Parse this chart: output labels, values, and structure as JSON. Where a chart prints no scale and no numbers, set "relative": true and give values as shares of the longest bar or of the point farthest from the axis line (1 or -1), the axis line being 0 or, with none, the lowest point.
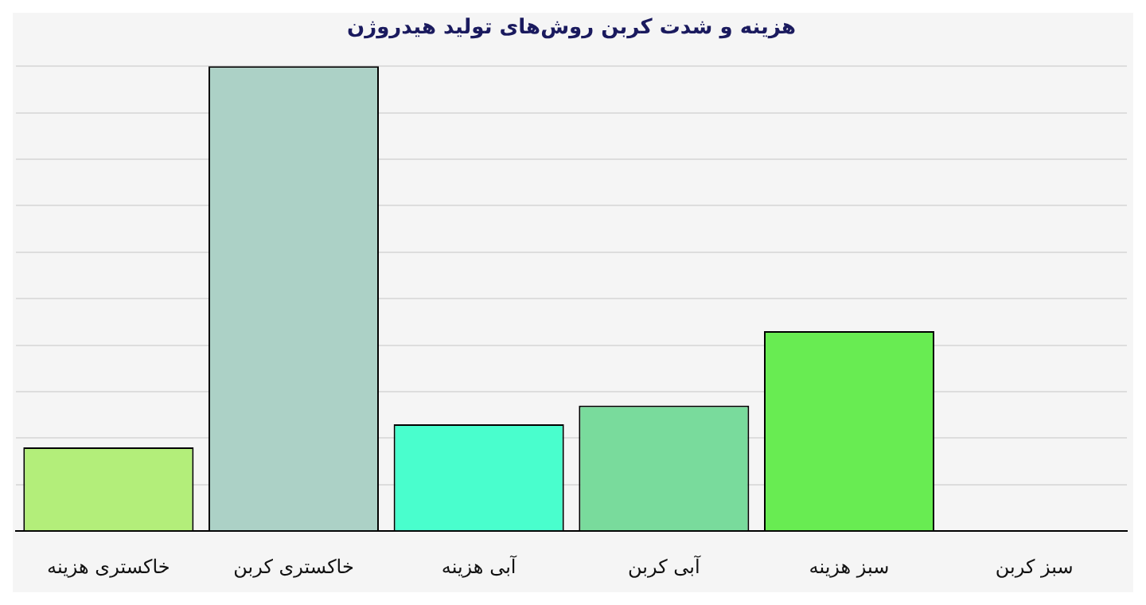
{
  "chart_data": {
    "type": "bar",
    "title": "هزینه و شدت کربن روش‌های تولید هیدروژن",
    "relative": true,
    "grid": "y",
    "categories": [
      "خاکستری هزینه",
      "خاکستری کربن",
      "آبی هزینه",
      "آبی کربن",
      "سبز هزینه",
      "سبز کربن"
    ],
    "values": [
      0.18,
      1,
      0.23,
      0.27,
      0.43,
      0
    ],
    "colors": [
      "#b3ee7a",
      "#acd1c6",
      "#49fecd",
      "#79db9c",
      "#68ec52",
      "#68ec52"
    ]
  }
}
